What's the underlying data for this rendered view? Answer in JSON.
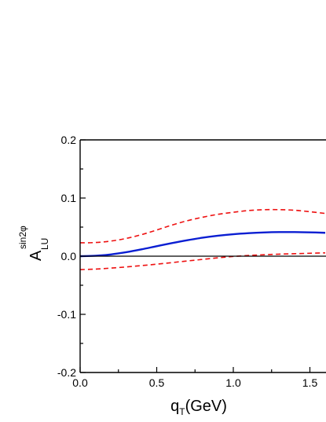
{
  "chart_data": {
    "type": "line",
    "xlim": [
      0.0,
      1.6
    ],
    "ylim": [
      -0.2,
      0.2
    ],
    "x_major_ticks": [
      0.0,
      0.5,
      1.0,
      1.5
    ],
    "x_tick_labels": [
      "0.0",
      "0.5",
      "1.0",
      "1.5"
    ],
    "y_major_ticks": [
      -0.2,
      -0.1,
      0.0,
      0.1,
      0.2
    ],
    "y_tick_labels": [
      "-0.2",
      "-0.1",
      "0.0",
      "0.1",
      "0.2"
    ],
    "xlabel": {
      "main": "q",
      "sub": "T",
      "rest": "(GeV)"
    },
    "ylabel": {
      "main": "A",
      "sub": "LU",
      "sup": "sin2φ"
    },
    "zero_line": true,
    "grid": false,
    "colors": {
      "central": "#0a1ed2",
      "band": "#ee1111",
      "axis": "#000000"
    },
    "series": [
      {
        "style": "solid",
        "color": "#0a1ed2",
        "x": [
          0.0,
          0.1,
          0.2,
          0.3,
          0.4,
          0.5,
          0.6,
          0.7,
          0.8,
          0.9,
          1.0,
          1.1,
          1.2,
          1.3,
          1.4,
          1.5,
          1.6
        ],
        "y": [
          0.0,
          0.0008,
          0.003,
          0.0068,
          0.0117,
          0.0172,
          0.0226,
          0.0275,
          0.0318,
          0.0352,
          0.0378,
          0.0396,
          0.0408,
          0.0414,
          0.0414,
          0.041,
          0.0402
        ]
      },
      {
        "style": "dashed",
        "color": "#ee1111",
        "x": [
          0.0,
          0.1,
          0.2,
          0.3,
          0.4,
          0.5,
          0.6,
          0.7,
          0.8,
          0.9,
          1.0,
          1.1,
          1.2,
          1.3,
          1.4,
          1.5,
          1.6
        ],
        "y": [
          0.023,
          0.0235,
          0.026,
          0.0305,
          0.037,
          0.045,
          0.0535,
          0.061,
          0.067,
          0.072,
          0.0755,
          0.0785,
          0.08,
          0.08,
          0.079,
          0.0765,
          0.0735
        ]
      },
      {
        "style": "dashed",
        "color": "#ee1111",
        "x": [
          0.0,
          0.1,
          0.2,
          0.3,
          0.4,
          0.5,
          0.6,
          0.7,
          0.8,
          0.9,
          1.0,
          1.1,
          1.2,
          1.3,
          1.4,
          1.5,
          1.6
        ],
        "y": [
          -0.023,
          -0.0222,
          -0.0205,
          -0.0185,
          -0.0162,
          -0.0137,
          -0.011,
          -0.0082,
          -0.0055,
          -0.0028,
          -0.0005,
          0.0012,
          0.0025,
          0.0035,
          0.0043,
          0.005,
          0.0057
        ]
      }
    ]
  }
}
